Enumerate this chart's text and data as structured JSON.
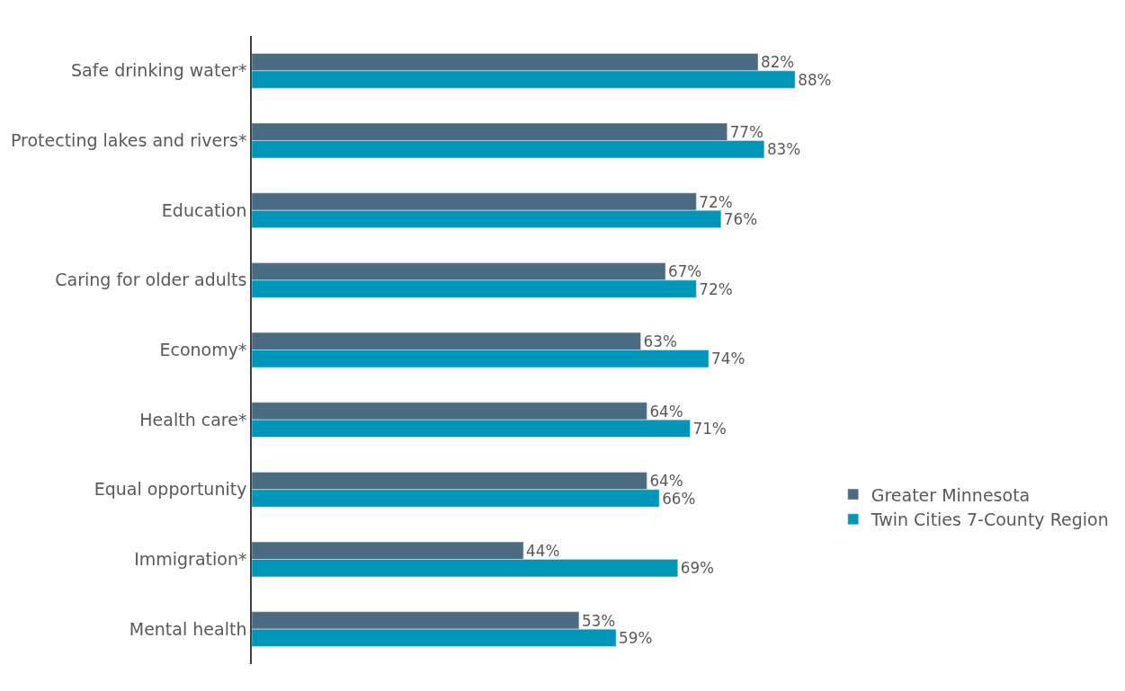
{
  "chart_data": {
    "type": "bar",
    "orientation": "horizontal",
    "categories": [
      "Safe drinking water*",
      "Protecting lakes and rivers*",
      "Education",
      "Caring for older adults",
      "Economy*",
      "Health care*",
      "Equal opportunity",
      "Immigration*",
      "Mental health"
    ],
    "series": [
      {
        "name": "Greater Minnesota",
        "color": "#4a6b82",
        "values": [
          82,
          77,
          72,
          67,
          63,
          64,
          64,
          44,
          53
        ],
        "value_labels": [
          "82%",
          "77%",
          "72%",
          "67%",
          "63%",
          "64%",
          "64%",
          "44%",
          "53%"
        ]
      },
      {
        "name": "Twin Cities 7-County Region",
        "color": "#0096b9",
        "values": [
          88,
          83,
          76,
          72,
          74,
          71,
          66,
          69,
          59
        ],
        "value_labels": [
          "88%",
          "83%",
          "76%",
          "72%",
          "74%",
          "71%",
          "66%",
          "69%",
          "59%"
        ]
      }
    ],
    "tick_labels": "y",
    "legend": "right"
  }
}
